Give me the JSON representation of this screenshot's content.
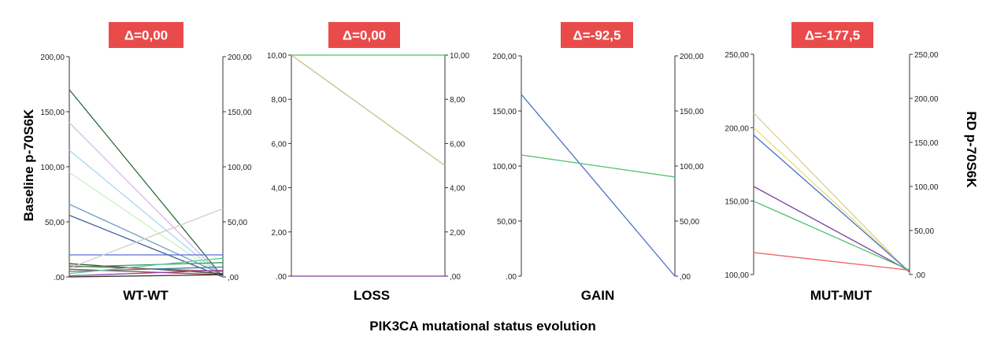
{
  "figure": {
    "ylabel_left": "Baseline p-70S6K",
    "ylabel_right": "RD p-70S6K",
    "xlabel": "PIK3CA mutational status evolution"
  },
  "colors": {
    "delta_box": "#e94b4b",
    "delta_text": "#ffffff",
    "axis": "#333333"
  },
  "chart_data": [
    {
      "type": "line",
      "title": "WT-WT",
      "delta": "Δ=0,00",
      "ylim": [
        0,
        200
      ],
      "ticks": [
        ".00",
        "50,00",
        "100,00",
        "150,00",
        "200,00"
      ],
      "right_ticks": [
        ",00",
        "50,00",
        "100,00",
        "150,00",
        "200,00"
      ],
      "series": [
        {
          "values": [
            170,
            0
          ],
          "color": "#2e6b3d"
        },
        {
          "values": [
            140,
            0
          ],
          "color": "#d8b8ea"
        },
        {
          "values": [
            115,
            0
          ],
          "color": "#a9d7f0"
        },
        {
          "values": [
            95,
            0
          ],
          "color": "#c9f2c2"
        },
        {
          "values": [
            66,
            2
          ],
          "color": "#6f9fc8"
        },
        {
          "values": [
            56,
            0
          ],
          "color": "#44609e"
        },
        {
          "values": [
            20,
            20
          ],
          "color": "#5b6ee0"
        },
        {
          "values": [
            12,
            3
          ],
          "color": "#444444"
        },
        {
          "values": [
            10,
            5
          ],
          "color": "#b04a4a"
        },
        {
          "values": [
            9,
            13
          ],
          "color": "#2e9d54"
        },
        {
          "values": [
            7,
            2
          ],
          "color": "#c0392b"
        },
        {
          "values": [
            5,
            9
          ],
          "color": "#3a7fa3"
        },
        {
          "values": [
            3,
            17
          ],
          "color": "#5cc89a"
        },
        {
          "values": [
            1,
            6
          ],
          "color": "#8e44ad"
        },
        {
          "values": [
            0,
            2
          ],
          "color": "#333333"
        },
        {
          "values": [
            8,
            62
          ],
          "color": "#cfcfcf"
        }
      ]
    },
    {
      "type": "line",
      "title": "LOSS",
      "delta": "Δ=0,00",
      "ylim": [
        0,
        10
      ],
      "ticks": [
        ".00",
        "2,00",
        "4,00",
        "6,00",
        "8,00",
        "10,00"
      ],
      "right_ticks": [
        ",00",
        "2,00",
        "4,00",
        "6,00",
        "8,00",
        "10,00"
      ],
      "series": [
        {
          "values": [
            10,
            10
          ],
          "color": "#4cc06a"
        },
        {
          "values": [
            10,
            5
          ],
          "color": "#c8bf8a"
        },
        {
          "values": [
            0,
            0
          ],
          "color": "#7b3fa0"
        }
      ]
    },
    {
      "type": "line",
      "title": "GAIN",
      "delta": "Δ=-92,5",
      "ylim": [
        0,
        200
      ],
      "ticks": [
        ".00",
        "50,00",
        "100,00",
        "150,00",
        "200,00"
      ],
      "right_ticks": [
        ",00",
        "50,00",
        "100,00",
        "150,00",
        "200,00"
      ],
      "series": [
        {
          "values": [
            165,
            0
          ],
          "color": "#4a6fc8"
        },
        {
          "values": [
            110,
            90
          ],
          "color": "#4cc06a"
        }
      ]
    },
    {
      "type": "line",
      "title": "MUT-MUT",
      "delta": "Δ=-177,5",
      "ylim": [
        100,
        250
      ],
      "ylim_right": [
        0,
        250
      ],
      "ticks": [
        "100,00",
        "150,00",
        "200,00",
        "250,00"
      ],
      "right_ticks": [
        ",00",
        "50,00",
        "100,00",
        "150,00",
        "200,00",
        "250,00"
      ],
      "series": [
        {
          "values": [
            210,
            2
          ],
          "color": "#d8cf9a"
        },
        {
          "values": [
            200,
            3
          ],
          "color": "#e8e070"
        },
        {
          "values": [
            195,
            3
          ],
          "color": "#4a6fc8"
        },
        {
          "values": [
            160,
            4
          ],
          "color": "#7b3fa0"
        },
        {
          "values": [
            150,
            5
          ],
          "color": "#4cc06a"
        },
        {
          "values": [
            115,
            5
          ],
          "color": "#f06060"
        }
      ]
    }
  ]
}
